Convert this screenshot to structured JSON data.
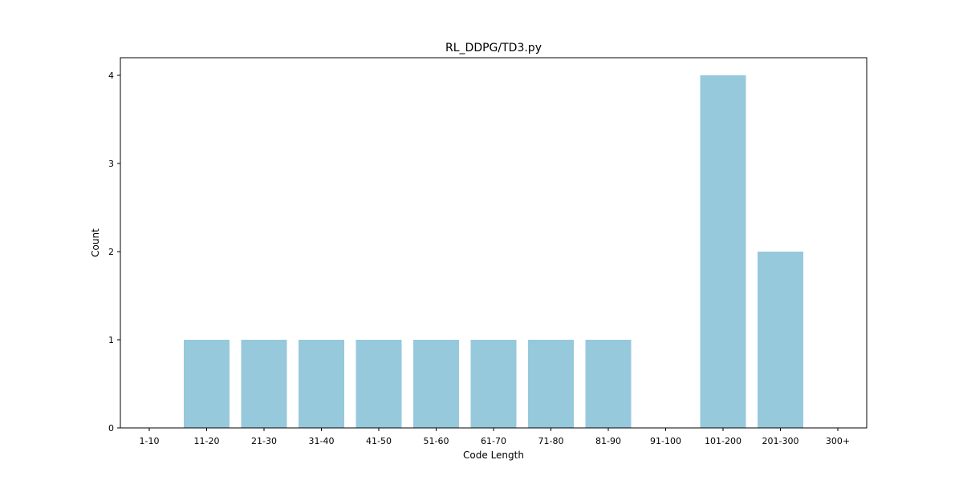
{
  "chart_data": {
    "type": "bar",
    "title": "RL_DDPG/TD3.py",
    "xlabel": "Code Length",
    "ylabel": "Count",
    "categories": [
      "1-10",
      "11-20",
      "21-30",
      "31-40",
      "41-50",
      "51-60",
      "61-70",
      "71-80",
      "81-90",
      "91-100",
      "101-200",
      "201-300",
      "300+"
    ],
    "values": [
      0,
      1,
      1,
      1,
      1,
      1,
      1,
      1,
      1,
      0,
      4,
      2,
      0
    ],
    "yticks": [
      "0",
      "1",
      "2",
      "3",
      "4"
    ],
    "ylim": [
      0,
      4.2
    ],
    "bar_color": "#96c9dc",
    "grid": false,
    "legend": "none"
  }
}
